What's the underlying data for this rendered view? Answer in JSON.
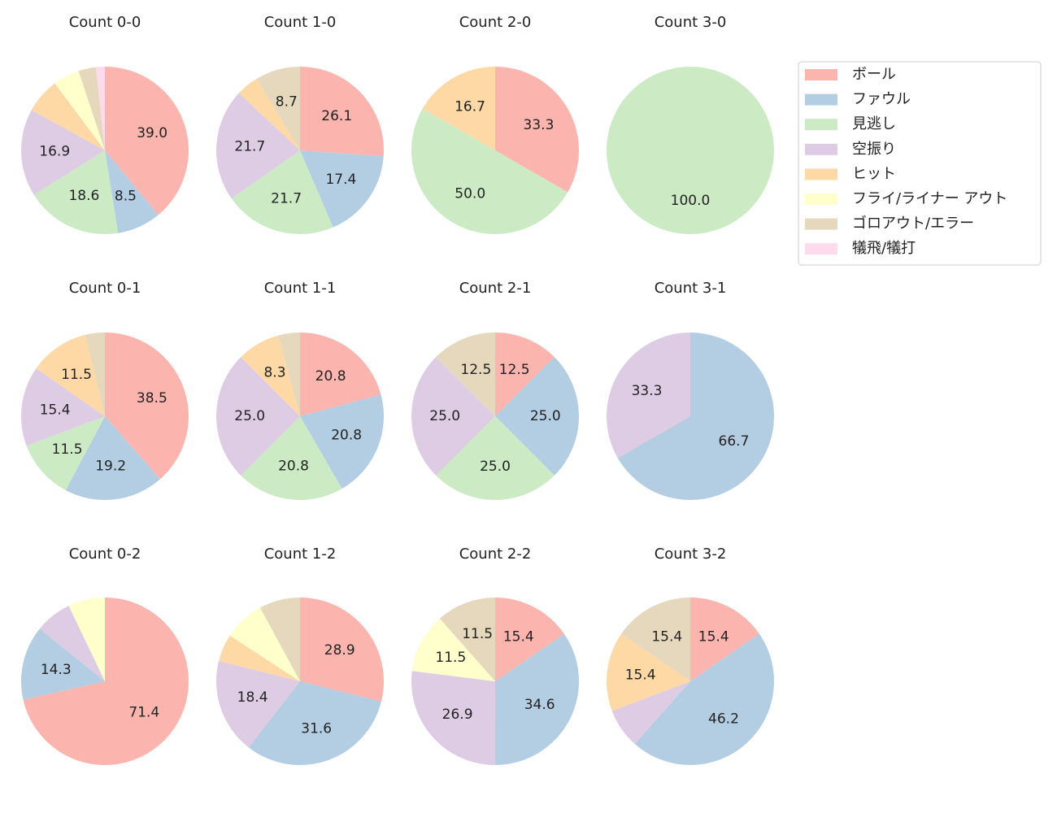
{
  "chart_data": [
    {
      "type": "pie",
      "title": "Count 0-0",
      "categories": [
        "ボール",
        "ファウル",
        "見逃し",
        "空振り",
        "ヒット",
        "フライ/ライナー アウト",
        "ゴロアウト/エラー",
        "犠飛/犠打"
      ],
      "colors": [
        "#fbb4ae",
        "#b3cde3",
        "#ccebc5",
        "#decbe4",
        "#fed9a6",
        "#ffffcc",
        "#e5d8bd",
        "#fddaec"
      ],
      "values": [
        39.0,
        8.5,
        18.6,
        16.9,
        6.8,
        5.1,
        3.4,
        1.7
      ],
      "value_labels": [
        "39.0",
        "8.5",
        "18.6",
        "16.9",
        null,
        null,
        null,
        null
      ]
    },
    {
      "type": "pie",
      "title": "Count 1-0",
      "categories": [
        "ボール",
        "ファウル",
        "見逃し",
        "空振り",
        "ヒット",
        "フライ/ライナー アウト",
        "ゴロアウト/エラー",
        "犠飛/犠打"
      ],
      "colors": [
        "#fbb4ae",
        "#b3cde3",
        "#ccebc5",
        "#decbe4",
        "#fed9a6",
        "#ffffcc",
        "#e5d8bd",
        "#fddaec"
      ],
      "values": [
        26.1,
        17.4,
        21.7,
        21.7,
        4.3,
        0,
        8.7,
        0
      ],
      "value_labels": [
        "26.1",
        "17.4",
        "21.7",
        "21.7",
        null,
        null,
        "8.7",
        null
      ]
    },
    {
      "type": "pie",
      "title": "Count 2-0",
      "categories": [
        "ボール",
        "ファウル",
        "見逃し",
        "空振り",
        "ヒット",
        "フライ/ライナー アウト",
        "ゴロアウト/エラー",
        "犠飛/犠打"
      ],
      "colors": [
        "#fbb4ae",
        "#b3cde3",
        "#ccebc5",
        "#decbe4",
        "#fed9a6",
        "#ffffcc",
        "#e5d8bd",
        "#fddaec"
      ],
      "values": [
        33.3,
        0,
        50.0,
        0,
        16.7,
        0,
        0,
        0
      ],
      "value_labels": [
        "33.3",
        null,
        "50.0",
        null,
        "16.7",
        null,
        null,
        null
      ]
    },
    {
      "type": "pie",
      "title": "Count 3-0",
      "categories": [
        "ボール",
        "ファウル",
        "見逃し",
        "空振り",
        "ヒット",
        "フライ/ライナー アウト",
        "ゴロアウト/エラー",
        "犠飛/犠打"
      ],
      "colors": [
        "#fbb4ae",
        "#b3cde3",
        "#ccebc5",
        "#decbe4",
        "#fed9a6",
        "#ffffcc",
        "#e5d8bd",
        "#fddaec"
      ],
      "values": [
        0,
        0,
        100.0,
        0,
        0,
        0,
        0,
        0
      ],
      "value_labels": [
        null,
        null,
        "100.0",
        null,
        null,
        null,
        null,
        null
      ]
    },
    {
      "type": "pie",
      "title": "Count 0-1",
      "categories": [
        "ボール",
        "ファウル",
        "見逃し",
        "空振り",
        "ヒット",
        "フライ/ライナー アウト",
        "ゴロアウト/エラー",
        "犠飛/犠打"
      ],
      "colors": [
        "#fbb4ae",
        "#b3cde3",
        "#ccebc5",
        "#decbe4",
        "#fed9a6",
        "#ffffcc",
        "#e5d8bd",
        "#fddaec"
      ],
      "values": [
        38.5,
        19.2,
        11.5,
        15.4,
        11.5,
        0,
        3.8,
        0
      ],
      "value_labels": [
        "38.5",
        "19.2",
        "11.5",
        "15.4",
        "11.5",
        null,
        null,
        null
      ]
    },
    {
      "type": "pie",
      "title": "Count 1-1",
      "categories": [
        "ボール",
        "ファウル",
        "見逃し",
        "空振り",
        "ヒット",
        "フライ/ライナー アウト",
        "ゴロアウト/エラー",
        "犠飛/犠打"
      ],
      "colors": [
        "#fbb4ae",
        "#b3cde3",
        "#ccebc5",
        "#decbe4",
        "#fed9a6",
        "#ffffcc",
        "#e5d8bd",
        "#fddaec"
      ],
      "values": [
        20.8,
        20.8,
        20.8,
        25.0,
        8.3,
        0,
        4.2,
        0
      ],
      "value_labels": [
        "20.8",
        "20.8",
        "20.8",
        "25.0",
        "8.3",
        null,
        null,
        null
      ]
    },
    {
      "type": "pie",
      "title": "Count 2-1",
      "categories": [
        "ボール",
        "ファウル",
        "見逃し",
        "空振り",
        "ヒット",
        "フライ/ライナー アウト",
        "ゴロアウト/エラー",
        "犠飛/犠打"
      ],
      "colors": [
        "#fbb4ae",
        "#b3cde3",
        "#ccebc5",
        "#decbe4",
        "#fed9a6",
        "#ffffcc",
        "#e5d8bd",
        "#fddaec"
      ],
      "values": [
        12.5,
        25.0,
        25.0,
        25.0,
        0,
        0,
        12.5,
        0
      ],
      "value_labels": [
        "12.5",
        "25.0",
        "25.0",
        "25.0",
        null,
        null,
        "12.5",
        null
      ]
    },
    {
      "type": "pie",
      "title": "Count 3-1",
      "categories": [
        "ボール",
        "ファウル",
        "見逃し",
        "空振り",
        "ヒット",
        "フライ/ライナー アウト",
        "ゴロアウト/エラー",
        "犠飛/犠打"
      ],
      "colors": [
        "#fbb4ae",
        "#b3cde3",
        "#ccebc5",
        "#decbe4",
        "#fed9a6",
        "#ffffcc",
        "#e5d8bd",
        "#fddaec"
      ],
      "values": [
        0,
        66.7,
        0,
        33.3,
        0,
        0,
        0,
        0
      ],
      "value_labels": [
        null,
        "66.7",
        null,
        "33.3",
        null,
        null,
        null,
        null
      ]
    },
    {
      "type": "pie",
      "title": "Count 0-2",
      "categories": [
        "ボール",
        "ファウル",
        "見逃し",
        "空振り",
        "ヒット",
        "フライ/ライナー アウト",
        "ゴロアウト/エラー",
        "犠飛/犠打"
      ],
      "colors": [
        "#fbb4ae",
        "#b3cde3",
        "#ccebc5",
        "#decbe4",
        "#fed9a6",
        "#ffffcc",
        "#e5d8bd",
        "#fddaec"
      ],
      "values": [
        71.4,
        14.3,
        0,
        7.1,
        0,
        7.1,
        0,
        0
      ],
      "value_labels": [
        "71.4",
        "14.3",
        null,
        null,
        null,
        null,
        null,
        null
      ]
    },
    {
      "type": "pie",
      "title": "Count 1-2",
      "categories": [
        "ボール",
        "ファウル",
        "見逃し",
        "空振り",
        "ヒット",
        "フライ/ライナー アウト",
        "ゴロアウト/エラー",
        "犠飛/犠打"
      ],
      "colors": [
        "#fbb4ae",
        "#b3cde3",
        "#ccebc5",
        "#decbe4",
        "#fed9a6",
        "#ffffcc",
        "#e5d8bd",
        "#fddaec"
      ],
      "values": [
        28.9,
        31.6,
        0,
        18.4,
        5.3,
        7.9,
        7.9,
        0
      ],
      "value_labels": [
        "28.9",
        "31.6",
        null,
        "18.4",
        null,
        null,
        null,
        null
      ]
    },
    {
      "type": "pie",
      "title": "Count 2-2",
      "categories": [
        "ボール",
        "ファウル",
        "見逃し",
        "空振り",
        "ヒット",
        "フライ/ライナー アウト",
        "ゴロアウト/エラー",
        "犠飛/犠打"
      ],
      "colors": [
        "#fbb4ae",
        "#b3cde3",
        "#ccebc5",
        "#decbe4",
        "#fed9a6",
        "#ffffcc",
        "#e5d8bd",
        "#fddaec"
      ],
      "values": [
        15.4,
        34.6,
        0,
        26.9,
        0,
        11.5,
        11.5,
        0
      ],
      "value_labels": [
        "15.4",
        "34.6",
        null,
        "26.9",
        null,
        "11.5",
        "11.5",
        null
      ]
    },
    {
      "type": "pie",
      "title": "Count 3-2",
      "categories": [
        "ボール",
        "ファウル",
        "見逃し",
        "空振り",
        "ヒット",
        "フライ/ライナー アウト",
        "ゴロアウト/エラー",
        "犠飛/犠打"
      ],
      "colors": [
        "#fbb4ae",
        "#b3cde3",
        "#ccebc5",
        "#decbe4",
        "#fed9a6",
        "#ffffcc",
        "#e5d8bd",
        "#fddaec"
      ],
      "values": [
        15.4,
        46.2,
        0,
        7.7,
        15.4,
        0,
        15.4,
        0
      ],
      "value_labels": [
        "15.4",
        "46.2",
        null,
        null,
        "15.4",
        null,
        "15.4",
        null
      ]
    }
  ]
}
